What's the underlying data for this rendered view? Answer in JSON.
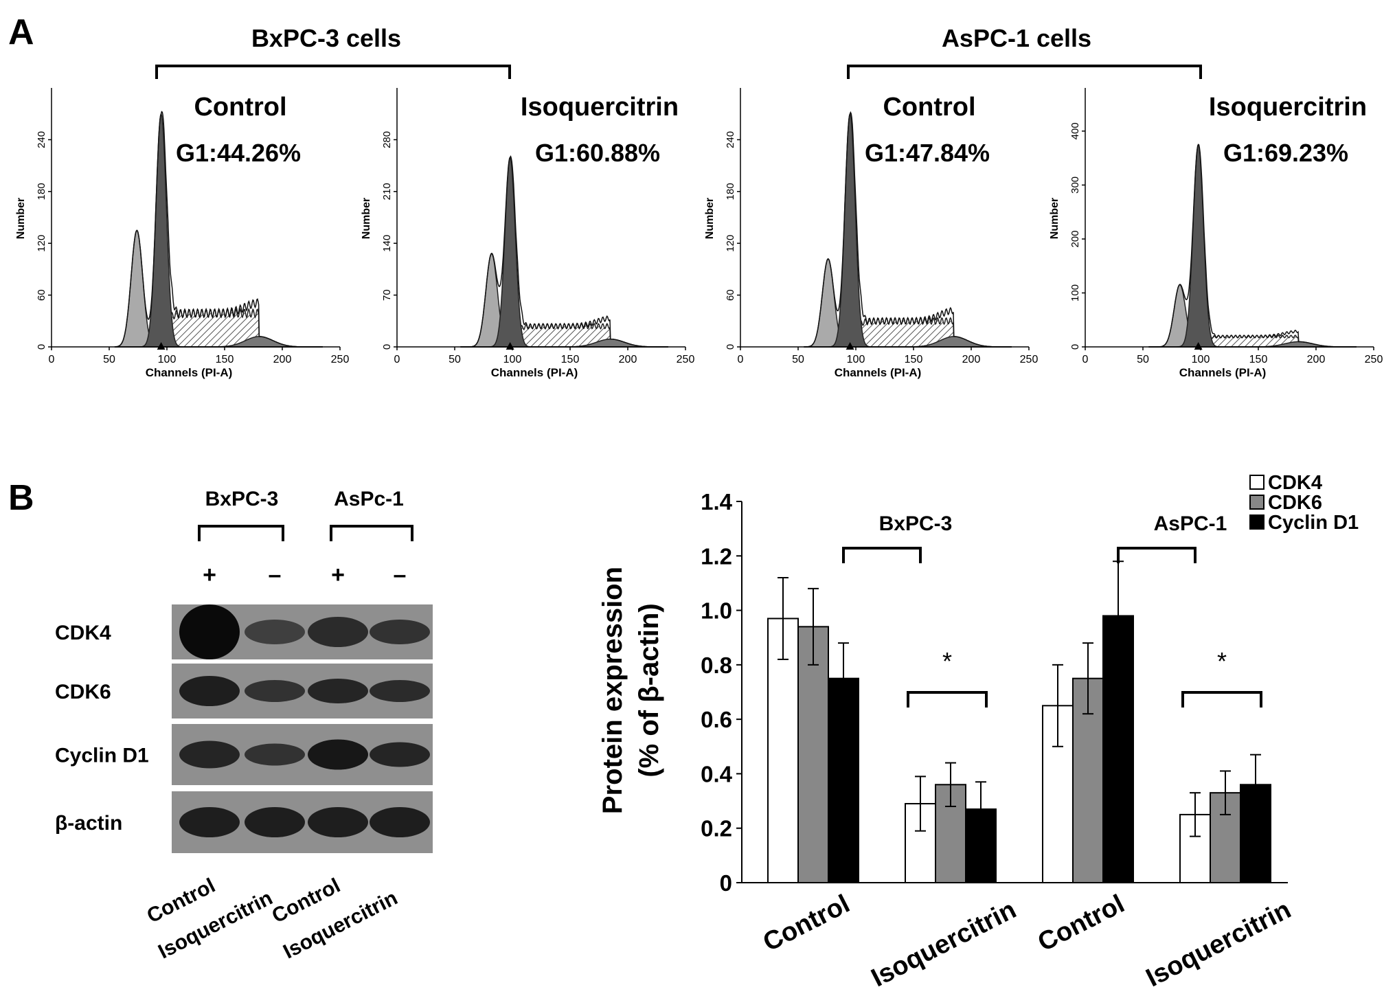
{
  "panel_a": {
    "label": "A",
    "group_left": "BxPC-3 cells",
    "group_right": "AsPC-1 cells",
    "histograms": [
      {
        "title": "Control",
        "g1": "G1:44.26%",
        "ylabel": "Number",
        "xlabel": "Channels (PI-A)",
        "yticks": [
          "0",
          "60",
          "120",
          "180",
          "240"
        ],
        "ymax": 300,
        "g0": 74,
        "g0h": 0.45,
        "g1c": 95,
        "g1h": 0.9,
        "gs": 0.13,
        "g2": 180,
        "g2h": 0.04
      },
      {
        "title": "Isoquercitrin",
        "g1": "G1:60.88%",
        "ylabel": "Number",
        "xlabel": "Channels (PI-A)",
        "yticks": [
          "0",
          "70",
          "140",
          "210",
          "280"
        ],
        "ymax": 350,
        "g0": 82,
        "g0h": 0.36,
        "g1c": 98,
        "g1h": 0.73,
        "gs": 0.08,
        "g2": 185,
        "g2h": 0.03
      },
      {
        "title": "Control",
        "g1": "G1:47.84%",
        "ylabel": "Number",
        "xlabel": "Channels (PI-A)",
        "yticks": [
          "0",
          "60",
          "120",
          "180",
          "240"
        ],
        "ymax": 300,
        "g0": 76,
        "g0h": 0.34,
        "g1c": 95,
        "g1h": 0.9,
        "gs": 0.1,
        "g2": 185,
        "g2h": 0.04
      },
      {
        "title": "Isoquercitrin",
        "g1": "G1:69.23%",
        "ylabel": "Number",
        "xlabel": "Channels (PI-A)",
        "yticks": [
          "0",
          "100",
          "200",
          "300",
          "400"
        ],
        "ymax": 480,
        "g0": 82,
        "g0h": 0.24,
        "g1c": 98,
        "g1h": 0.78,
        "gs": 0.04,
        "g2": 185,
        "g2h": 0.02
      }
    ],
    "xticks": [
      "0",
      "50",
      "100",
      "150",
      "200",
      "250"
    ]
  },
  "panel_b": {
    "label": "B",
    "blot": {
      "cell_lines": [
        "BxPC-3",
        "AsPc-1"
      ],
      "lane_signs": [
        "+",
        "–",
        "+",
        "–"
      ],
      "rows": [
        "CDK4",
        "CDK6",
        "Cyclin D1",
        "β-actin"
      ],
      "lane_labels": [
        "Control",
        "Isoquercitrin",
        "Control",
        "Isoquercitrin"
      ]
    }
  },
  "chart_data": {
    "type": "bar",
    "categories": [
      "Control",
      "Isoquercitrin",
      "Control",
      "Isoquercitrin"
    ],
    "groups": [
      "BxPC-3",
      "AsPC-1"
    ],
    "ylabel_line1": "Protein expression",
    "ylabel_line2": "(% of β-actin)",
    "ylim": [
      0,
      1.4
    ],
    "yticks": [
      "0",
      "0.2",
      "0.4",
      "0.6",
      "0.8",
      "1.0",
      "1.2",
      "1.4"
    ],
    "significance": "*",
    "series": [
      {
        "name": "CDK4",
        "color": "#ffffff",
        "values": [
          0.97,
          0.29,
          0.65,
          0.25
        ],
        "errors": [
          0.15,
          0.1,
          0.15,
          0.08
        ]
      },
      {
        "name": "CDK6",
        "color": "#888888",
        "values": [
          0.94,
          0.36,
          0.75,
          0.33
        ],
        "errors": [
          0.14,
          0.08,
          0.13,
          0.08
        ]
      },
      {
        "name": "Cyclin D1",
        "color": "#000000",
        "values": [
          0.75,
          0.27,
          0.98,
          0.36
        ],
        "errors": [
          0.13,
          0.1,
          0.2,
          0.11
        ]
      }
    ],
    "legend_position": "top-right"
  }
}
